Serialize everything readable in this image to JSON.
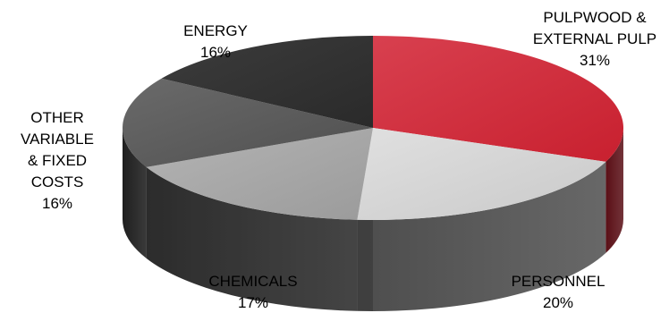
{
  "chart_data": {
    "type": "pie",
    "title": "",
    "slices": [
      {
        "label_lines": [
          "PULPWOOD &",
          "EXTERNAL PULP"
        ],
        "value": 31,
        "value_text": "31%",
        "color": "#c8202f",
        "color_light": "#d8404f",
        "color_dark": "#5a0f16"
      },
      {
        "label_lines": [
          "PERSONNEL"
        ],
        "value": 20,
        "value_text": "20%",
        "color": "#c9c9c9",
        "color_light": "#e0e0e0",
        "color_dark": "#4d4d4d"
      },
      {
        "label_lines": [
          "CHEMICALS"
        ],
        "value": 17,
        "value_text": "17%",
        "color": "#9b9b9b",
        "color_light": "#b4b4b4",
        "color_dark": "#363636"
      },
      {
        "label_lines": [
          "OTHER",
          "VARIABLE",
          "& FIXED",
          "COSTS"
        ],
        "value": 16,
        "value_text": "16%",
        "color": "#4f4f4f",
        "color_light": "#6a6a6a",
        "color_dark": "#262626"
      },
      {
        "label_lines": [
          "ENERGY"
        ],
        "value": 16,
        "value_text": "16%",
        "color": "#2a2a2a",
        "color_light": "#3c3c3c",
        "color_dark": "#1a1a1a"
      }
    ],
    "legend": "none"
  }
}
